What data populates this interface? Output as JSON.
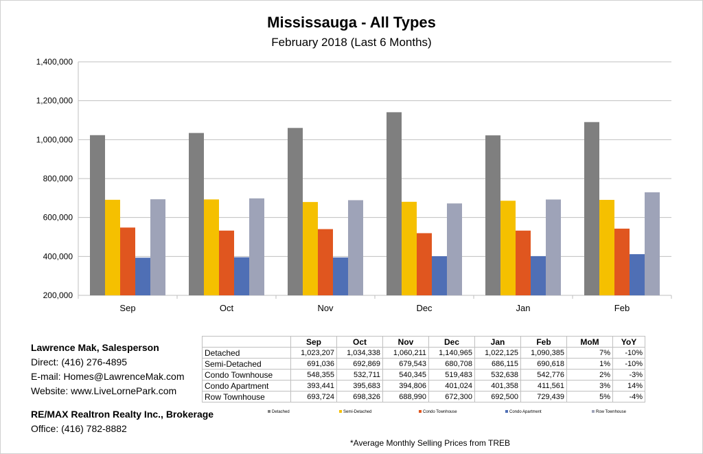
{
  "chart_data": {
    "type": "bar",
    "title": "Mississauga - All Types",
    "subtitle": "February 2018 (Last 6 Months)",
    "categories": [
      "Sep",
      "Oct",
      "Nov",
      "Dec",
      "Jan",
      "Feb"
    ],
    "ylim": [
      200000,
      1400000
    ],
    "yticks": [
      "200,000",
      "400,000",
      "600,000",
      "800,000",
      "1,000,000",
      "1,200,000",
      "1,400,000"
    ],
    "grid": true,
    "series": [
      {
        "name": "Detached",
        "color": "#7f7f7f",
        "values": [
          1023207,
          1034338,
          1060211,
          1140965,
          1022125,
          1090385
        ]
      },
      {
        "name": "Semi-Detached",
        "color": "#f5c000",
        "values": [
          691036,
          692869,
          679543,
          680708,
          686115,
          690618
        ]
      },
      {
        "name": "Condo Townhouse",
        "color": "#e0561f",
        "values": [
          548355,
          532711,
          540345,
          519483,
          532638,
          542776
        ]
      },
      {
        "name": "Condo Apartment",
        "color": "#4f6fb5",
        "values": [
          393441,
          395683,
          394806,
          401024,
          401358,
          411561
        ]
      },
      {
        "name": "Row Townhouse",
        "color": "#9ea3b8",
        "values": [
          693724,
          698326,
          688990,
          672300,
          692500,
          729439
        ]
      }
    ]
  },
  "table": {
    "headers": [
      "Sep",
      "Oct",
      "Nov",
      "Dec",
      "Jan",
      "Feb",
      "MoM",
      "YoY"
    ],
    "rows": [
      {
        "label": "Detached",
        "cells": [
          "1,023,207",
          "1,034,338",
          "1,060,211",
          "1,140,965",
          "1,022,125",
          "1,090,385",
          "7%",
          "-10%"
        ]
      },
      {
        "label": "Semi-Detached",
        "cells": [
          "691,036",
          "692,869",
          "679,543",
          "680,708",
          "686,115",
          "690,618",
          "1%",
          "-10%"
        ]
      },
      {
        "label": "Condo Townhouse",
        "cells": [
          "548,355",
          "532,711",
          "540,345",
          "519,483",
          "532,638",
          "542,776",
          "2%",
          "-3%"
        ]
      },
      {
        "label": "Condo Apartment",
        "cells": [
          "393,441",
          "395,683",
          "394,806",
          "401,024",
          "401,358",
          "411,561",
          "3%",
          "14%"
        ]
      },
      {
        "label": "Row Townhouse",
        "cells": [
          "693,724",
          "698,326",
          "688,990",
          "672,300",
          "692,500",
          "729,439",
          "5%",
          "-4%"
        ]
      }
    ]
  },
  "contact": {
    "name": "Lawrence Mak, Salesperson",
    "direct": "Direct:  (416) 276-4895",
    "email": "E-mail:  Homes@LawrenceMak.com",
    "website": "Website: www.LiveLornePark.com"
  },
  "brokerage": {
    "name": "RE/MAX Realtron Realty Inc., Brokerage",
    "office": "Office: (416) 782-8882"
  },
  "footnote": "*Average Monthly Selling Prices  from TREB"
}
